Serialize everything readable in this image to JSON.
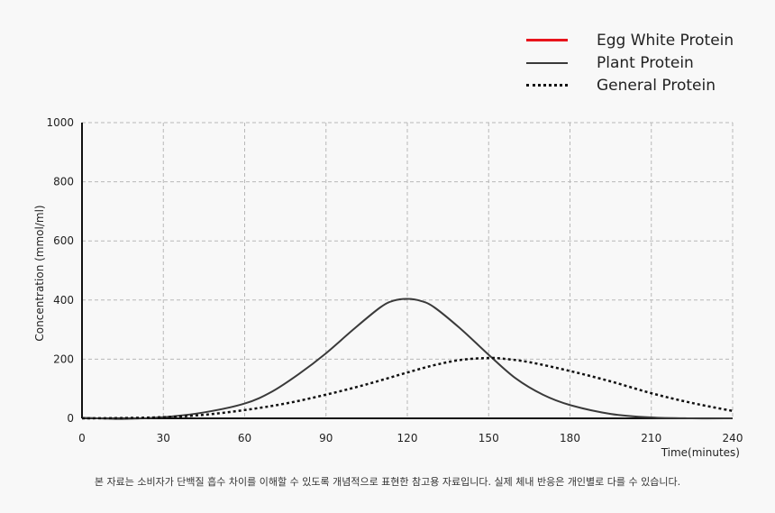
{
  "chart_data": {
    "type": "line",
    "xlabel": "Time(minutes)",
    "ylabel": "Concentration (mmol/ml)",
    "xlim": [
      0,
      240
    ],
    "ylim": [
      0,
      1000
    ],
    "xticks": [
      0,
      30,
      60,
      90,
      120,
      150,
      180,
      210,
      240
    ],
    "yticks": [
      0,
      200,
      400,
      600,
      800,
      1000
    ],
    "grid": true,
    "legend_position": "top-right",
    "series": [
      {
        "name": "Egg White Protein",
        "color": "#e8141c",
        "style": "solid",
        "x": [],
        "y": []
      },
      {
        "name": "Plant Protein",
        "color": "#3a3a3a",
        "style": "solid",
        "x": [
          0,
          15,
          30,
          45,
          60,
          70,
          80,
          90,
          100,
          110,
          115,
          120,
          125,
          130,
          140,
          150,
          160,
          170,
          180,
          195,
          210,
          225,
          240
        ],
        "y": [
          2,
          -2,
          4,
          20,
          50,
          90,
          150,
          220,
          300,
          375,
          398,
          404,
          397,
          375,
          300,
          215,
          135,
          80,
          45,
          15,
          3,
          0,
          0
        ]
      },
      {
        "name": "General Protein",
        "color": "#111111",
        "style": "dotted",
        "x": [
          0,
          15,
          30,
          45,
          60,
          75,
          90,
          105,
          120,
          130,
          140,
          150,
          155,
          165,
          180,
          195,
          210,
          225,
          240
        ],
        "y": [
          0,
          1,
          4,
          12,
          28,
          50,
          80,
          115,
          155,
          180,
          198,
          204,
          202,
          190,
          160,
          125,
          85,
          52,
          25
        ]
      }
    ]
  },
  "footnote": "본 자료는 소비자가 단백질 흡수 차이를 이해할 수 있도록 개념적으로 표현한 참고용 자료입니다. 실제 체내 반응은 개인별로 다를 수 있습니다."
}
